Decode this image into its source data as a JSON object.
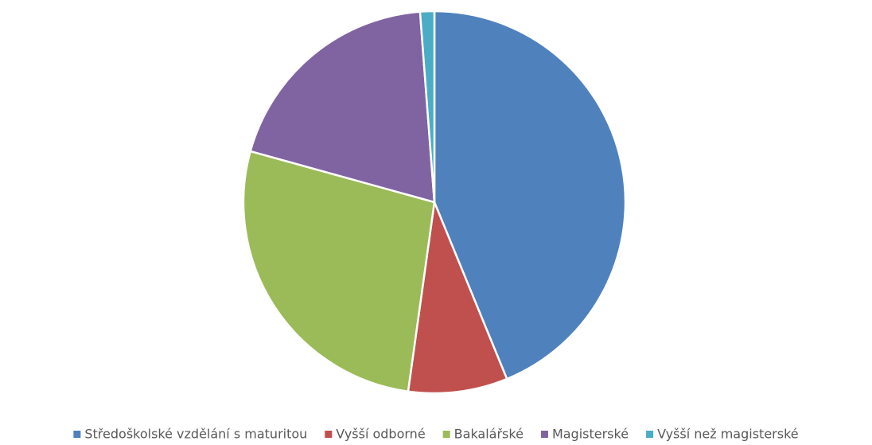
{
  "chart_data": {
    "type": "pie",
    "categories": [
      "Středoškolské vzdělání s maturitou",
      "Vyšší odborné",
      "Bakalářské",
      "Magisterské",
      "Vyšší než magisterské"
    ],
    "values": [
      43.8,
      8.4,
      27.1,
      19.5,
      1.2
    ],
    "colors": [
      "#4f81bd",
      "#c0504d",
      "#9bbb59",
      "#8064a2",
      "#4bacc6"
    ],
    "legend": "bottom"
  }
}
